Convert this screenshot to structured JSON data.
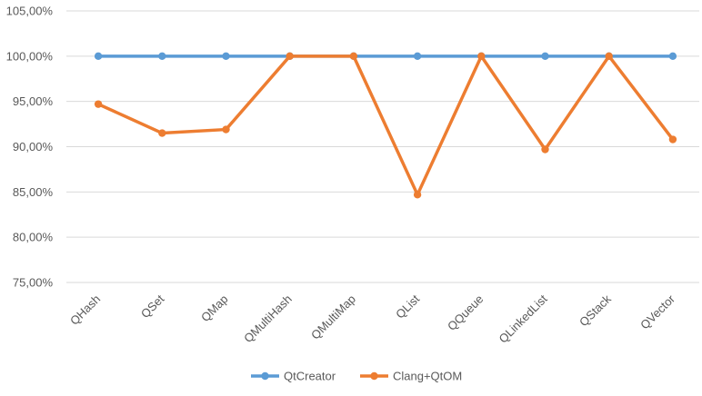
{
  "chart_data": {
    "type": "line",
    "categories": [
      "QHash",
      "QSet",
      "QMap",
      "QMultiHash",
      "QMultiMap",
      "QList",
      "QQueue",
      "QLinkedList",
      "QStack",
      "QVector"
    ],
    "series": [
      {
        "name": "QtCreator",
        "color": "#5B9BD5",
        "values": [
          100,
          100,
          100,
          100,
          100,
          100,
          100,
          100,
          100,
          100
        ]
      },
      {
        "name": "Clang+QtOM",
        "color": "#ED7D31",
        "values": [
          94.7,
          91.5,
          91.9,
          100,
          100,
          84.7,
          100,
          89.7,
          100,
          90.8
        ]
      }
    ],
    "y_ticks": [
      75,
      80,
      85,
      90,
      95,
      100,
      105
    ],
    "y_tick_labels": [
      "75,00%",
      "80,00%",
      "85,00%",
      "90,00%",
      "95,00%",
      "100,00%",
      "105,00%"
    ],
    "ylim": [
      75,
      105
    ],
    "grid": true,
    "legend_position": "bottom"
  }
}
